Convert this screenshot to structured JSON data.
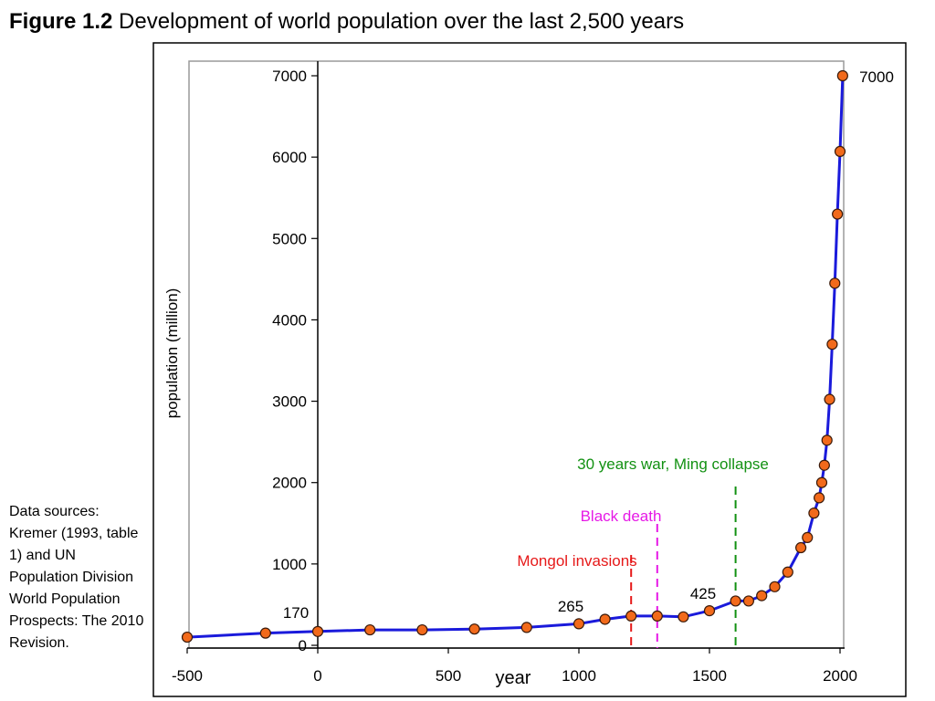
{
  "figure": {
    "label": "Figure 1.2",
    "caption": "Development of world population over the last 2,500 years"
  },
  "sources_note": "Data sources: Kremer (1993, table 1) and UN Population Division World Population Prospects: The 2010 Revision.",
  "chart_data": {
    "type": "line",
    "title": "Development of world population over the last 2,500 years",
    "xlabel": "year",
    "ylabel": "population (million)",
    "xlim": [
      -500,
      2000
    ],
    "ylim": [
      0,
      7000
    ],
    "x_ticks": [
      -500,
      0,
      500,
      1000,
      1500,
      2000
    ],
    "y_ticks": [
      0,
      1000,
      2000,
      3000,
      4000,
      5000,
      6000,
      7000
    ],
    "grid": false,
    "line_color": "#1a1adb",
    "marker_color": "#f26a1b",
    "series": [
      {
        "x": [
          -500,
          -200,
          0,
          200,
          400,
          600,
          800,
          1000,
          1100,
          1200,
          1300,
          1400,
          1500,
          1600,
          1650,
          1700,
          1750,
          1800,
          1850,
          1875,
          1900,
          1920,
          1930,
          1940,
          1950,
          1960,
          1970,
          1980,
          1990,
          2000,
          2010
        ],
        "y": [
          100,
          150,
          170,
          190,
          190,
          200,
          220,
          265,
          320,
          360,
          360,
          350,
          425,
          545,
          545,
          610,
          720,
          900,
          1200,
          1325,
          1625,
          1813,
          2000,
          2213,
          2520,
          3023,
          3700,
          4450,
          5300,
          6070,
          7000
        ]
      }
    ],
    "annotations": [
      {
        "text": "170",
        "x": 0,
        "y": 170
      },
      {
        "text": "265",
        "x": 1000,
        "y": 265
      },
      {
        "text": "425",
        "x": 1500,
        "y": 425
      },
      {
        "text": "7000",
        "x": 2010,
        "y": 7000
      }
    ],
    "events": [
      {
        "label": "Mongol invasions",
        "x": 1200,
        "color": "#e61919"
      },
      {
        "label": "Black death",
        "x": 1300,
        "color": "#e619e6"
      },
      {
        "label": "30 years war, Ming collapse",
        "x": 1600,
        "color": "#129112"
      }
    ]
  }
}
